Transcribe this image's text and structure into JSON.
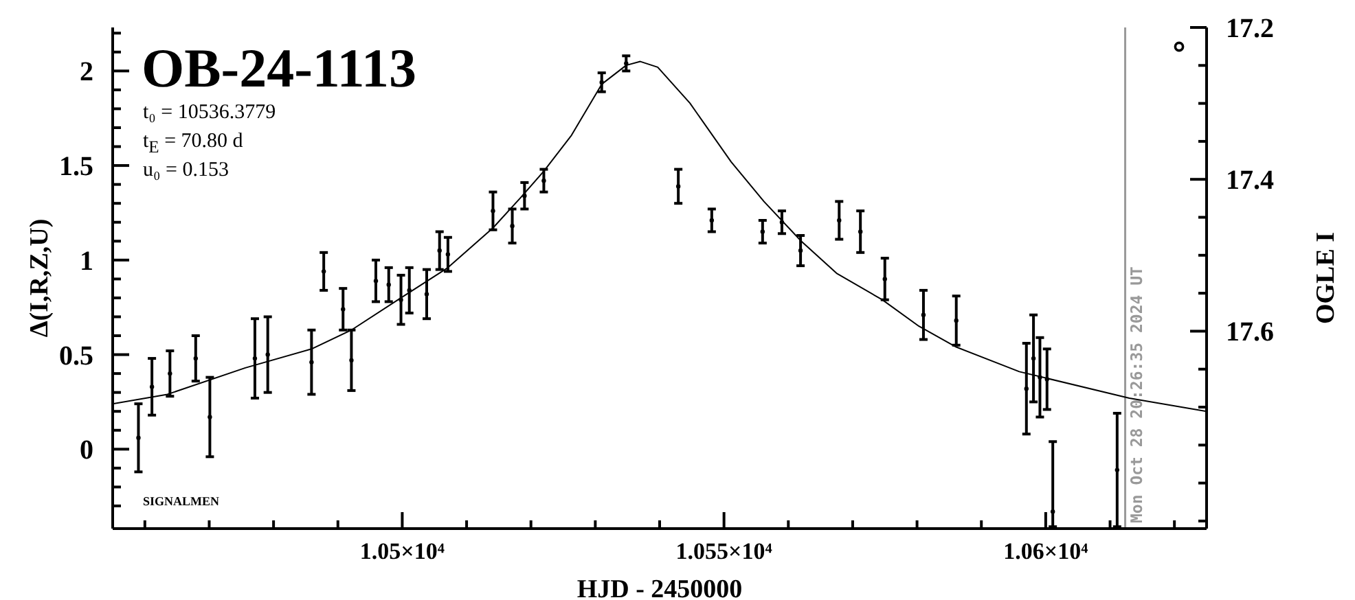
{
  "chart_data": {
    "type": "scatter",
    "title": "OB-24-1113",
    "xlabel": "HJD - 2450000",
    "ylabel": "Δ(I,R,Z,U)",
    "y2label": "OGLE I",
    "annotations": [
      "t₀ = 10536.3779",
      "t$_{E}$ = 70.80 d",
      "u₀ = 0.153",
      "SIGNALMEN",
      "Mon Oct 28 20:26:35 2024 UT"
    ],
    "xlim": [
      10455,
      10625
    ],
    "xticks": [
      {
        "value": 10460,
        "label": null
      },
      {
        "value": 10470,
        "label": null
      },
      {
        "value": 10480,
        "label": null
      },
      {
        "value": 10490,
        "label": null
      },
      {
        "value": 10500,
        "label": "1.05×10⁴"
      },
      {
        "value": 10510,
        "label": null
      },
      {
        "value": 10520,
        "label": null
      },
      {
        "value": 10530,
        "label": null
      },
      {
        "value": 10540,
        "label": null
      },
      {
        "value": 10550,
        "label": "1.055×10⁴"
      },
      {
        "value": 10560,
        "label": null
      },
      {
        "value": 10570,
        "label": null
      },
      {
        "value": 10580,
        "label": null
      },
      {
        "value": 10590,
        "label": null
      },
      {
        "value": 10600,
        "label": "1.06×10⁴"
      },
      {
        "value": 10610,
        "label": null
      },
      {
        "value": 10620,
        "label": null
      }
    ],
    "ylim": [
      -0.42,
      2.23
    ],
    "yticks": [
      {
        "value": -0.3,
        "label": null
      },
      {
        "value": -0.2,
        "label": null
      },
      {
        "value": -0.1,
        "label": null
      },
      0,
      {
        "value": 0.1,
        "label": null
      },
      {
        "value": 0.2,
        "label": null
      },
      {
        "value": 0.3,
        "label": null
      },
      {
        "value": 0.4,
        "label": null
      },
      0.5,
      {
        "value": 0.6,
        "label": null
      },
      {
        "value": 0.7,
        "label": null
      },
      {
        "value": 0.8,
        "label": null
      },
      {
        "value": 0.9,
        "label": null
      },
      1,
      {
        "value": 1.1,
        "label": null
      },
      {
        "value": 1.2,
        "label": null
      },
      {
        "value": 1.3,
        "label": null
      },
      {
        "value": 1.4,
        "label": null
      },
      1.5,
      {
        "value": 1.6,
        "label": null
      },
      {
        "value": 1.7,
        "label": null
      },
      {
        "value": 1.8,
        "label": null
      },
      {
        "value": 1.9,
        "label": null
      },
      2,
      {
        "value": 2.1,
        "label": null
      },
      {
        "value": 2.2,
        "label": null
      }
    ],
    "y2lim": [
      17.86,
      17.2
    ],
    "y2ticks": [
      17.2,
      {
        "value": 17.25,
        "label": null
      },
      {
        "value": 17.3,
        "label": null
      },
      {
        "value": 17.35,
        "label": null
      },
      17.4,
      {
        "value": 17.45,
        "label": null
      },
      {
        "value": 17.5,
        "label": null
      },
      {
        "value": 17.55,
        "label": null
      },
      17.6,
      {
        "value": 17.65,
        "label": null
      },
      {
        "value": 17.7,
        "label": null
      },
      {
        "value": 17.75,
        "label": null
      },
      {
        "value": 17.8,
        "label": null
      },
      {
        "value": 17.85,
        "label": null
      }
    ],
    "series": [
      {
        "type": "line",
        "color": "#000000",
        "marker": "none",
        "line_style": "solid",
        "x": [
          10455,
          10463.5,
          10475.6,
          10485.9,
          10492.1,
          10499.8,
          10507.1,
          10514.1,
          10518.4,
          10522,
          10526.3,
          10531,
          10534.8,
          10537,
          10539.7,
          10544.7,
          10551.1,
          10556.2,
          10562,
          10567.5,
          10574.6,
          10580.3,
          10586.1,
          10595.9,
          10613,
          10625
        ],
        "values": [
          0.24,
          0.29,
          0.43,
          0.53,
          0.63,
          0.8,
          0.96,
          1.17,
          1.33,
          1.47,
          1.66,
          1.93,
          2.03,
          2.05,
          2.02,
          1.83,
          1.52,
          1.31,
          1.1,
          0.93,
          0.79,
          0.65,
          0.54,
          0.41,
          0.27,
          0.2
        ]
      },
      {
        "color": "#000000",
        "marker": "circle",
        "x": [
          10459,
          10461.1,
          10463.9,
          10467.9,
          10470.1,
          10477.1,
          10479.1,
          10485.9,
          10487.8,
          10490.8,
          10492.1,
          10495.9,
          10497.9,
          10499.8,
          10501.1,
          10503.8,
          10505.8,
          10507.1,
          10514.1,
          10517.1,
          10519,
          10522,
          10531,
          10534.8,
          10542.9,
          10548.1,
          10556,
          10559,
          10561.9,
          10567.9,
          10571.2,
          10575,
          10581,
          10586.1,
          10597,
          10598.1,
          10599.1,
          10600.2,
          10601.1,
          10611.1
        ],
        "values": [
          0.06,
          0.33,
          0.4,
          0.48,
          0.17,
          0.48,
          0.5,
          0.46,
          0.94,
          0.74,
          0.47,
          0.89,
          0.87,
          0.79,
          0.84,
          0.82,
          1.05,
          1.03,
          1.26,
          1.18,
          1.34,
          1.42,
          1.94,
          2.04,
          1.39,
          1.21,
          1.15,
          1.2,
          1.05,
          1.21,
          1.15,
          0.9,
          0.71,
          0.68,
          0.32,
          0.48,
          0.38,
          0.37,
          -0.33,
          -0.11
        ],
        "errors": [
          0.18,
          0.15,
          0.12,
          0.12,
          0.21,
          0.21,
          0.2,
          0.17,
          0.1,
          0.11,
          0.16,
          0.11,
          0.09,
          0.13,
          0.12,
          0.13,
          0.1,
          0.09,
          0.1,
          0.09,
          0.07,
          0.06,
          0.05,
          0.04,
          0.09,
          0.06,
          0.06,
          0.06,
          0.08,
          0.1,
          0.11,
          0.11,
          0.13,
          0.13,
          0.24,
          0.23,
          0.21,
          0.16,
          [
            -0.41,
            0.04
          ],
          0.3
        ]
      }
    ],
    "ref_lines": [
      {
        "axis": "x",
        "value": 10612.35,
        "color": "#999999"
      }
    ]
  }
}
